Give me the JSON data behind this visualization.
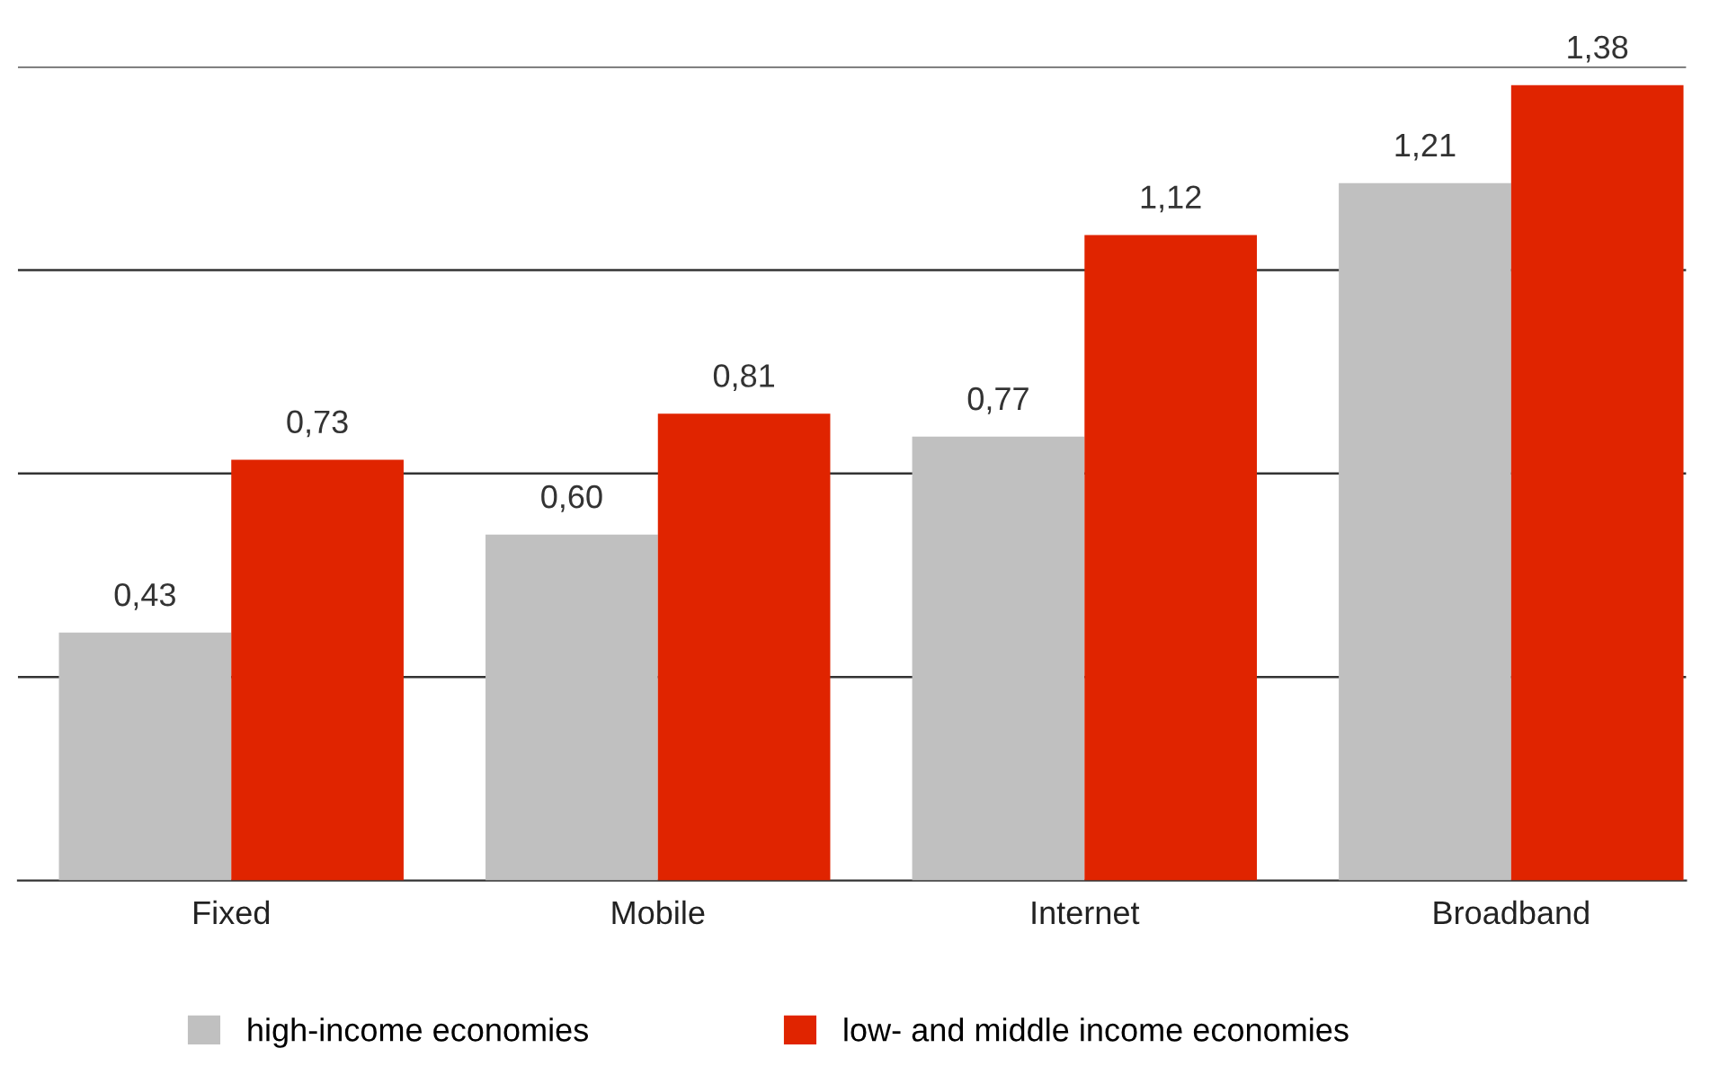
{
  "chart_data": {
    "type": "bar",
    "categories": [
      "Fixed",
      "Mobile",
      "Internet",
      "Broadband"
    ],
    "series": [
      {
        "name": "high-income economies",
        "color": "#c0c0c0",
        "values": [
          0.43,
          0.6,
          0.77,
          1.21
        ],
        "value_labels": [
          "0,43",
          "0,60",
          "0,77",
          "1,21"
        ]
      },
      {
        "name": "low- and middle income economies",
        "color": "#e02400",
        "values": [
          0.73,
          0.81,
          1.12,
          1.38
        ],
        "value_labels": [
          "0,73",
          "0,81",
          "1,12",
          "1,38"
        ]
      }
    ],
    "ylim": [
      0,
      1.412
    ],
    "yticks": [
      {
        "value": 0.353,
        "label": null
      },
      {
        "value": 0.706,
        "label": null
      },
      {
        "value": 1.059,
        "label": null
      },
      {
        "value": 1.412,
        "label": null
      }
    ],
    "grid": "y",
    "legend": "bottom",
    "tick_labels": "x"
  }
}
